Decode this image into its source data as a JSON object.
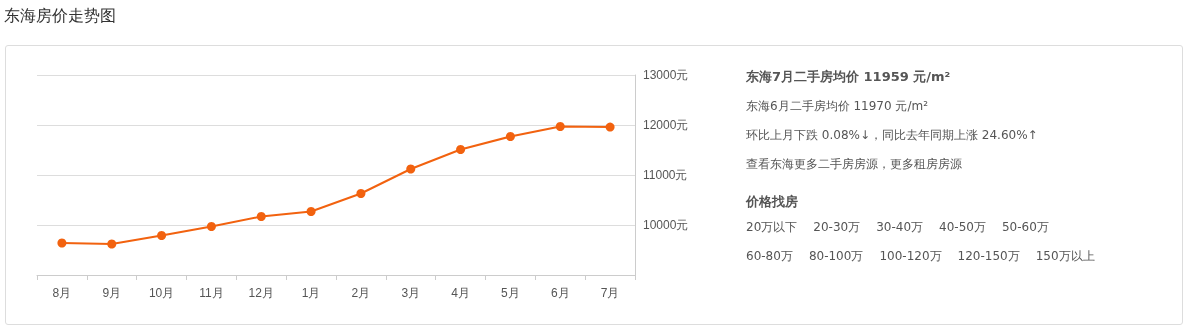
{
  "chart_data": {
    "type": "line",
    "title": "东海房价走势图",
    "categories": [
      "8月",
      "9月",
      "10月",
      "11月",
      "12月",
      "1月",
      "2月",
      "3月",
      "4月",
      "5月",
      "6月",
      "7月"
    ],
    "series": [
      {
        "color": "#f2620f",
        "values": [
          9640,
          9620,
          9790,
          9970,
          10170,
          10270,
          10630,
          11120,
          11510,
          11770,
          11970,
          11959
        ]
      }
    ],
    "ylim": [
      9000,
      13000
    ],
    "yticks": [
      {
        "value": 10000,
        "label": "10000元"
      },
      {
        "value": 11000,
        "label": "11000元"
      },
      {
        "value": 12000,
        "label": "12000元"
      },
      {
        "value": 13000,
        "label": "13000元"
      }
    ],
    "grid": "y",
    "marker": "circle",
    "line_style": "solid",
    "annotations": [
      "东海7月二手房均价 11959 元/m²",
      "东海6月二手房均价 11970 元/m²",
      "环比上月下跌 0.08%↓，同比去年同期上涨 24.60%↑",
      "查看东海更多二手房房源，更多租房房源",
      "价格找房",
      "20万以下",
      "20-30万",
      "30-40万",
      "40-50万",
      "50-60万",
      "60-80万",
      "80-100万",
      "100-120万",
      "120-150万",
      "150万以上"
    ]
  }
}
